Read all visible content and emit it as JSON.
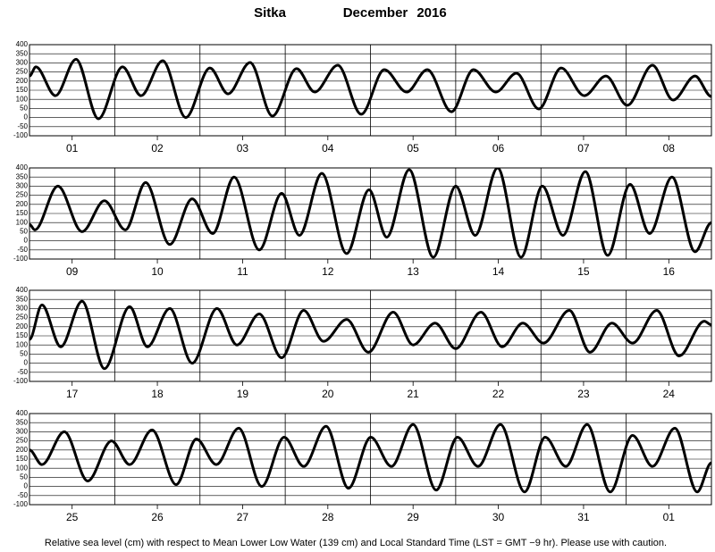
{
  "title": {
    "station": "Sitka",
    "month": "December",
    "year": "2016"
  },
  "footnote": "Relative sea level (cm) with respect to Mean Lower Low Water (139 cm) and Local Standard Time (LST = GMT −9 hr). Please use with caution.",
  "chart_data": [
    {
      "type": "line",
      "categories": [
        "01",
        "02",
        "03",
        "04",
        "05",
        "06",
        "07",
        "08"
      ],
      "x": [
        0,
        1.8,
        7.3,
        13.1,
        19.4,
        26.2,
        31.4,
        37.5,
        44.0,
        50.8,
        55.9,
        62.1,
        68.4,
        75.2,
        80.3,
        86.8,
        93.4,
        99.9,
        106.2,
        112.0,
        118.8,
        125.0,
        131.3,
        137.1,
        143.4,
        149.7,
        156.2,
        162.3,
        168.3,
        175.4,
        181.2,
        187.4,
        192
      ],
      "values": [
        228,
        278,
        120,
        320,
        -7,
        278,
        120,
        312,
        0,
        272,
        130,
        302,
        8,
        268,
        140,
        287,
        18,
        263,
        140,
        263,
        32,
        263,
        140,
        243,
        47,
        272,
        120,
        228,
        67,
        287,
        96,
        228,
        115
      ],
      "xlim": [
        0,
        192
      ],
      "ylim": [
        -100,
        400
      ],
      "yticks": [
        400,
        350,
        300,
        250,
        200,
        150,
        100,
        50,
        0,
        -50,
        -100
      ],
      "color": "#000000",
      "grid": true
    },
    {
      "type": "line",
      "categories": [
        "09",
        "10",
        "11",
        "12",
        "13",
        "14",
        "15",
        "16"
      ],
      "x": [
        0,
        1.5,
        8,
        14.8,
        21.1,
        27,
        32.7,
        39.5,
        45.8,
        51.6,
        57.6,
        64.7,
        71,
        76,
        82.3,
        89.3,
        95.6,
        100.6,
        106.9,
        113.7,
        120,
        125.5,
        131.8,
        138.4,
        144.4,
        150.2,
        156.5,
        162.8,
        169.1,
        174.6,
        180.9,
        187.4,
        192
      ],
      "values": [
        90,
        60,
        300,
        50,
        220,
        60,
        320,
        -20,
        230,
        40,
        350,
        -50,
        260,
        30,
        370,
        -70,
        280,
        20,
        390,
        -90,
        300,
        30,
        400,
        -90,
        300,
        30,
        380,
        -80,
        310,
        40,
        350,
        -60,
        100
      ],
      "xlim": [
        0,
        192
      ],
      "ylim": [
        -100,
        400
      ],
      "yticks": [
        400,
        350,
        300,
        250,
        200,
        150,
        100,
        50,
        0,
        -50,
        -100
      ],
      "color": "#000000",
      "grid": true
    },
    {
      "type": "line",
      "categories": [
        "17",
        "18",
        "19",
        "20",
        "21",
        "22",
        "23",
        "24"
      ],
      "x": [
        0,
        3.5,
        8.8,
        14.8,
        21.1,
        28.2,
        33.2,
        39.5,
        45.8,
        52.8,
        58.4,
        64.7,
        71,
        77.2,
        82.8,
        89.3,
        95.4,
        102.4,
        108,
        114.2,
        120,
        127.1,
        133.1,
        138.9,
        144.7,
        152,
        157.8,
        164,
        169.8,
        176.6,
        182.9,
        190,
        192
      ],
      "values": [
        130,
        320,
        90,
        340,
        -30,
        310,
        90,
        300,
        0,
        300,
        100,
        270,
        30,
        290,
        120,
        240,
        60,
        280,
        100,
        220,
        80,
        280,
        90,
        220,
        110,
        290,
        60,
        220,
        110,
        290,
        40,
        230,
        210
      ],
      "xlim": [
        0,
        192
      ],
      "ylim": [
        -100,
        400
      ],
      "yticks": [
        400,
        350,
        300,
        250,
        200,
        150,
        100,
        50,
        0,
        -50,
        -100
      ],
      "color": "#000000",
      "grid": true
    },
    {
      "type": "line",
      "categories": [
        "25",
        "26",
        "27",
        "28",
        "29",
        "30",
        "31",
        "01"
      ],
      "x": [
        0,
        3.5,
        9.8,
        16.4,
        23.1,
        28.2,
        34.5,
        41.3,
        47,
        52.6,
        58.9,
        65.4,
        71.7,
        77.2,
        83.5,
        89.8,
        96.1,
        101.9,
        108,
        114.5,
        120.5,
        126.3,
        132.6,
        139.4,
        145.2,
        151,
        157,
        163.5,
        169.8,
        175.4,
        181.7,
        188,
        192
      ],
      "values": [
        200,
        120,
        300,
        30,
        250,
        120,
        310,
        10,
        260,
        120,
        320,
        0,
        270,
        110,
        330,
        -10,
        270,
        110,
        340,
        -20,
        270,
        110,
        340,
        -30,
        270,
        110,
        340,
        -30,
        280,
        110,
        320,
        -30,
        130
      ],
      "xlim": [
        0,
        192
      ],
      "ylim": [
        -100,
        400
      ],
      "yticks": [
        400,
        350,
        300,
        250,
        200,
        150,
        100,
        50,
        0,
        -50,
        -100
      ],
      "color": "#000000",
      "grid": true
    }
  ]
}
